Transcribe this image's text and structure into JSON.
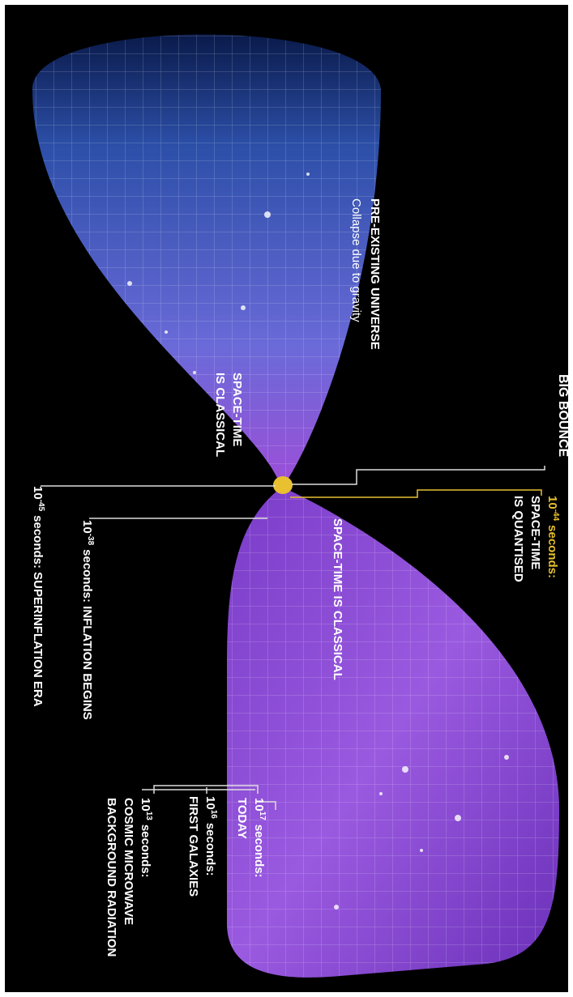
{
  "title": "BIG BOUNCE",
  "upper": {
    "heading": "PRE-EXISTING UNIVERSE",
    "subheading": "Collapse due to gravity",
    "state": [
      "SPACE-TIME",
      "IS CLASSICAL"
    ]
  },
  "lower": {
    "state": "SPACE-TIME IS CLASSICAL"
  },
  "events": [
    {
      "base": "10",
      "exponent": "-44",
      "lines": [
        "seconds:",
        "SPACE-TIME",
        "IS QUANTISED"
      ]
    },
    {
      "base": "10",
      "exponent": "-38",
      "lines": [
        "seconds: INFLATION BEGINS"
      ]
    },
    {
      "base": "10",
      "exponent": "-45",
      "lines": [
        "seconds: SUPERINFLATION ERA"
      ]
    },
    {
      "base": "10",
      "exponent": "17",
      "lines": [
        "seconds:",
        "TODAY"
      ]
    },
    {
      "base": "10",
      "exponent": "16",
      "lines": [
        "seconds:",
        "FIRST GALAXIES"
      ]
    },
    {
      "base": "10",
      "exponent": "13",
      "lines": [
        "seconds:",
        "COSMIC MICROWAVE",
        "BACKGROUND RADIATION"
      ]
    }
  ]
}
